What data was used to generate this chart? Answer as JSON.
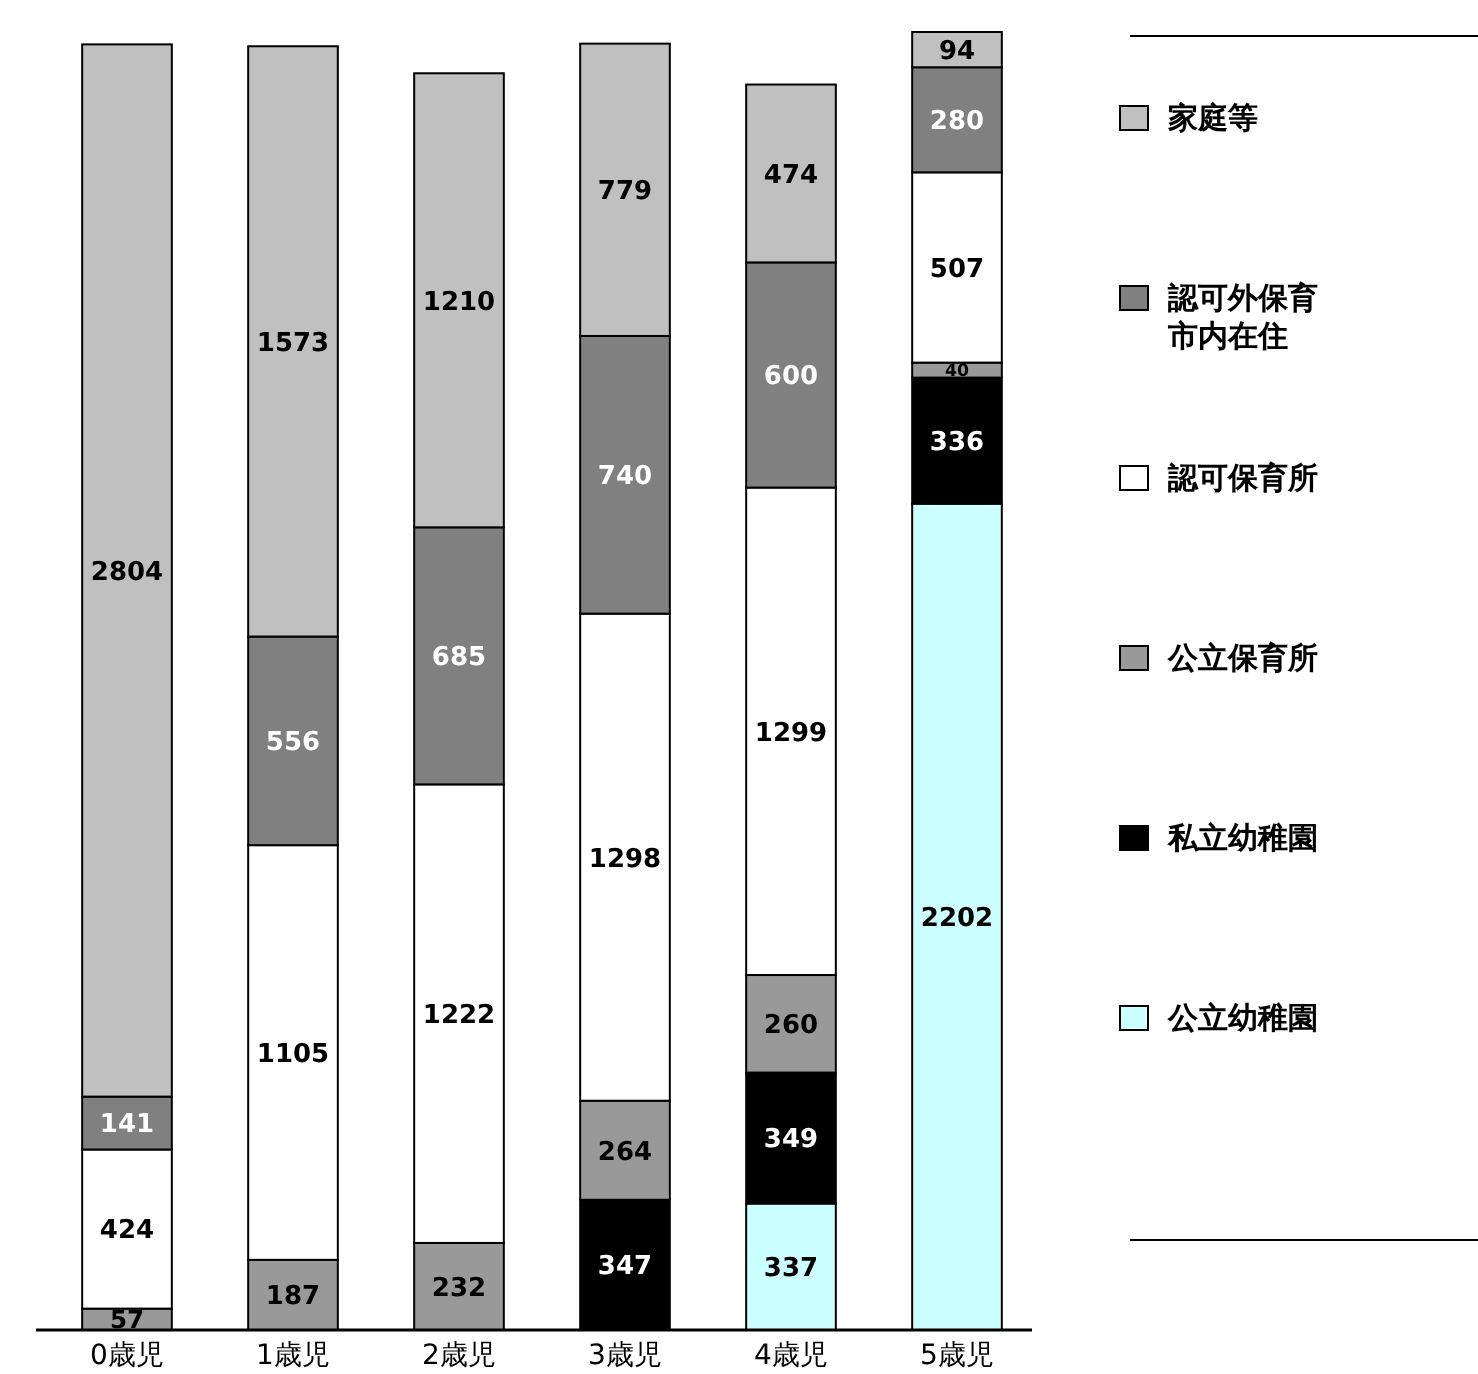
{
  "chart_data": {
    "type": "bar",
    "stacked": true,
    "data_labels": true,
    "legend": "right",
    "categories": [
      "0歳児",
      "1歳児",
      "2歳児",
      "3歳児",
      "4歳児",
      "5歳児"
    ],
    "series": [
      {
        "name": "公立幼稚園",
        "color": "#ccffff",
        "values": [
          null,
          null,
          null,
          null,
          337,
          2202
        ]
      },
      {
        "name": "私立幼稚園",
        "color": "#000000",
        "values": [
          null,
          null,
          null,
          347,
          349,
          336
        ]
      },
      {
        "name": "公立保育所",
        "color": "#999999",
        "values": [
          57,
          187,
          232,
          264,
          260,
          40
        ]
      },
      {
        "name": "認可保育所",
        "color": "#ffffff",
        "values": [
          424,
          1105,
          1222,
          1298,
          1299,
          507
        ]
      },
      {
        "name": "認可外保育市内在住",
        "color": "#808080",
        "values": [
          141,
          556,
          685,
          740,
          600,
          280
        ]
      },
      {
        "name": "家庭等",
        "color": "#c0c0c0",
        "values": [
          2804,
          1573,
          1210,
          779,
          474,
          94
        ]
      }
    ]
  }
}
